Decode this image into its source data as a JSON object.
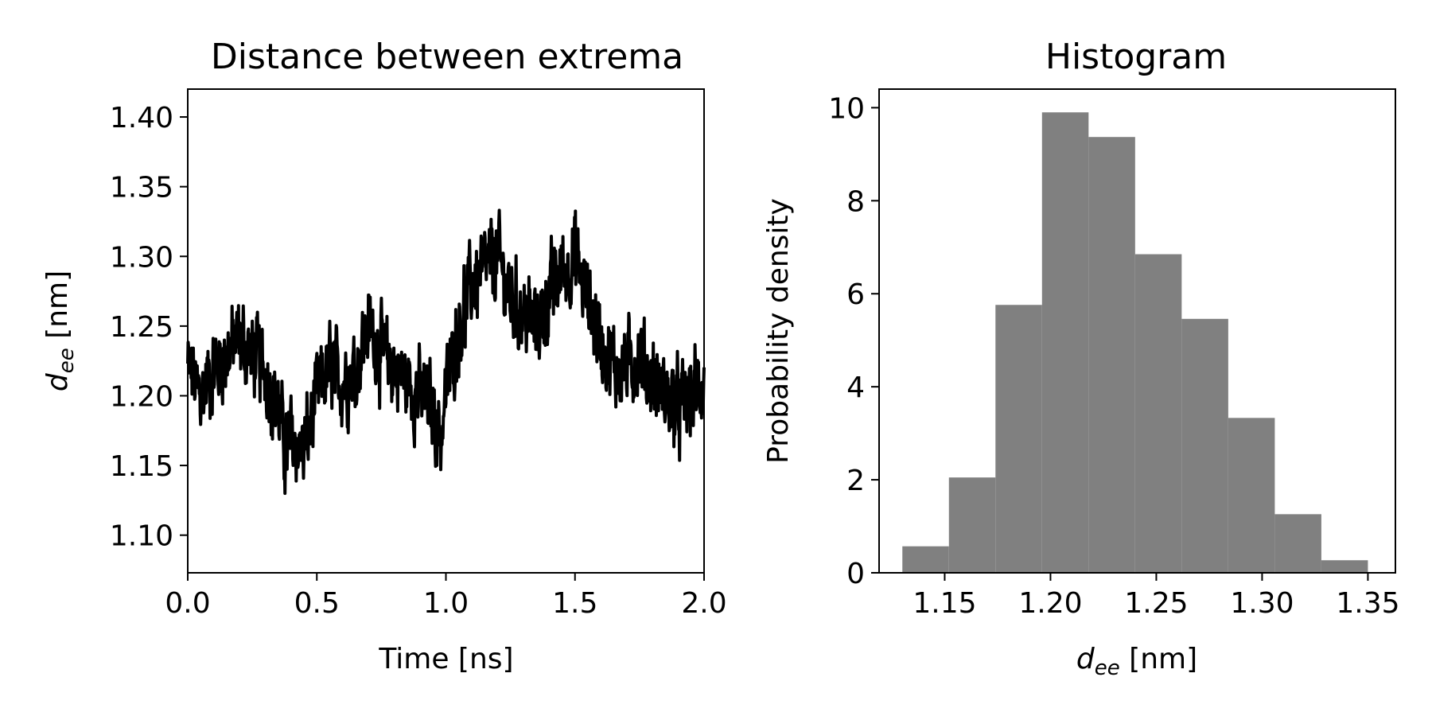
{
  "chart_data": [
    {
      "type": "line",
      "title": "Distance between extrema",
      "xlabel": "Time [ns]",
      "ylabel": {
        "var": "d",
        "sub": "ee",
        "unit": " [nm]"
      },
      "xlim": [
        0.0,
        2.0
      ],
      "ylim": [
        1.073,
        1.42
      ],
      "xticks": [
        0.0,
        0.5,
        1.0,
        1.5,
        2.0
      ],
      "xtick_labels": [
        "0.0",
        "0.5",
        "1.0",
        "1.5",
        "2.0"
      ],
      "yticks": [
        1.1,
        1.15,
        1.2,
        1.25,
        1.3,
        1.35,
        1.4
      ],
      "ytick_labels": [
        "1.10",
        "1.15",
        "1.20",
        "1.25",
        "1.30",
        "1.35",
        "1.40"
      ],
      "color": "#000000",
      "x": [
        0.0,
        0.05,
        0.1,
        0.15,
        0.2,
        0.25,
        0.3,
        0.35,
        0.38,
        0.4,
        0.45,
        0.5,
        0.55,
        0.6,
        0.65,
        0.7,
        0.75,
        0.8,
        0.85,
        0.9,
        0.95,
        0.98,
        1.0,
        1.05,
        1.1,
        1.15,
        1.2,
        1.25,
        1.3,
        1.35,
        1.4,
        1.45,
        1.5,
        1.55,
        1.6,
        1.65,
        1.7,
        1.75,
        1.8,
        1.85,
        1.9,
        1.95,
        2.0
      ],
      "y": [
        1.22,
        1.2,
        1.22,
        1.23,
        1.24,
        1.23,
        1.22,
        1.19,
        1.16,
        1.17,
        1.16,
        1.2,
        1.22,
        1.21,
        1.22,
        1.25,
        1.23,
        1.22,
        1.21,
        1.2,
        1.19,
        1.17,
        1.2,
        1.25,
        1.28,
        1.29,
        1.3,
        1.27,
        1.26,
        1.25,
        1.27,
        1.29,
        1.3,
        1.27,
        1.24,
        1.22,
        1.22,
        1.23,
        1.21,
        1.2,
        1.19,
        1.2,
        1.21
      ]
    },
    {
      "type": "bar",
      "title": "Histogram",
      "xlabel": {
        "var": "d",
        "sub": "ee",
        "unit": " [nm]"
      },
      "ylabel": "Probability density",
      "xlim": [
        1.119,
        1.363
      ],
      "ylim": [
        0,
        10.4
      ],
      "xticks": [
        1.15,
        1.2,
        1.25,
        1.3,
        1.35
      ],
      "xtick_labels": [
        "1.15",
        "1.20",
        "1.25",
        "1.30",
        "1.35"
      ],
      "yticks": [
        0,
        2,
        4,
        6,
        8,
        10
      ],
      "ytick_labels": [
        "0",
        "2",
        "4",
        "6",
        "8",
        "10"
      ],
      "color": "#808080",
      "bin_edges": [
        1.13,
        1.152,
        1.174,
        1.196,
        1.218,
        1.24,
        1.262,
        1.284,
        1.306,
        1.328,
        1.35
      ],
      "values": [
        0.57,
        2.05,
        5.76,
        9.9,
        9.37,
        6.85,
        5.46,
        3.33,
        1.26,
        0.27
      ]
    }
  ]
}
